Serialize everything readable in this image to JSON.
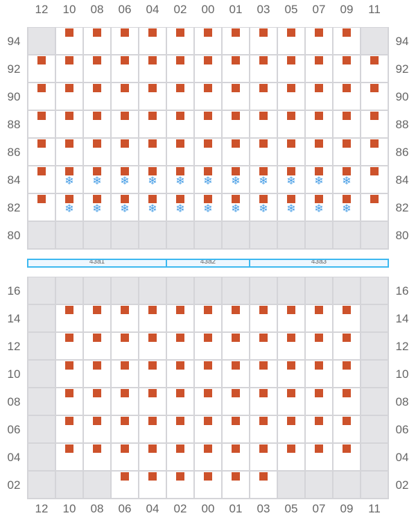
{
  "columns": [
    "12",
    "10",
    "08",
    "06",
    "04",
    "02",
    "00",
    "01",
    "03",
    "05",
    "07",
    "09",
    "11"
  ],
  "colors": {
    "square": "#cd522b",
    "snowflake": "#4a9fe6",
    "unavailable": "#e4e4e7",
    "section_border": "#3db8f0"
  },
  "legend_states": {
    "g": "unavailable",
    "s": "square-marker",
    "f": "square-marker+snowflake-icon"
  },
  "top_grid": {
    "rows": [
      {
        "label": "94",
        "cells": "gsssssssssssg"
      },
      {
        "label": "92",
        "cells": "sssssssssssss"
      },
      {
        "label": "90",
        "cells": "sssssssssssss"
      },
      {
        "label": "88",
        "cells": "sssssssssssss"
      },
      {
        "label": "86",
        "cells": "sssssssssssss"
      },
      {
        "label": "84",
        "cells": "sfffffffffffs"
      },
      {
        "label": "82",
        "cells": "sfffffffffffs"
      },
      {
        "label": "80",
        "cells": "ggggggggggggg"
      }
    ]
  },
  "sections": [
    {
      "label": "43a1",
      "span": 5
    },
    {
      "label": "43a2",
      "span": 3
    },
    {
      "label": "43a3",
      "span": 5
    }
  ],
  "bottom_grid": {
    "rows": [
      {
        "label": "16",
        "cells": "ggggggggggggg"
      },
      {
        "label": "14",
        "cells": "gsssssssssssg"
      },
      {
        "label": "12",
        "cells": "gsssssssssssg"
      },
      {
        "label": "10",
        "cells": "gsssssssssssg"
      },
      {
        "label": "08",
        "cells": "gsssssssssssg"
      },
      {
        "label": "06",
        "cells": "gsssssssssssg"
      },
      {
        "label": "04",
        "cells": "gsssssssssssg"
      },
      {
        "label": "02",
        "cells": "gggssssssgggg"
      }
    ]
  }
}
